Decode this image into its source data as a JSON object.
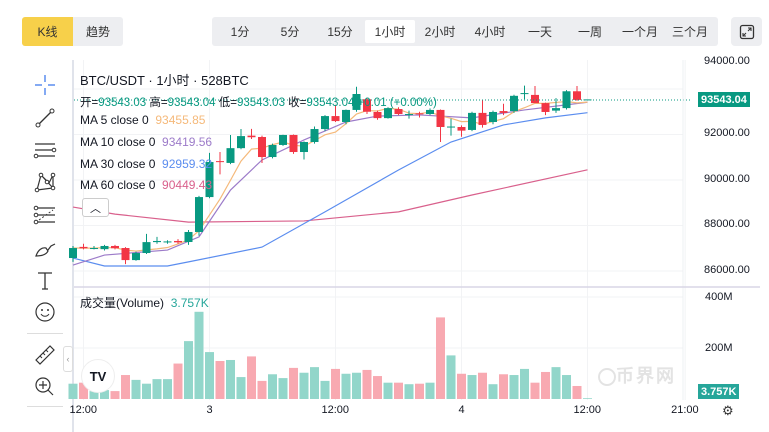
{
  "toolbar": {
    "chart_types": [
      {
        "label": "K线",
        "active": true
      },
      {
        "label": "趋势",
        "active": false
      }
    ],
    "intervals": [
      "1分",
      "5分",
      "15分",
      "1小时",
      "2小时",
      "4小时",
      "一天",
      "一周",
      "一个月",
      "三个月"
    ],
    "selected_interval": "1小时",
    "fullscreen_icon": "expand-icon"
  },
  "drawing_tools": [
    "crosshair-icon",
    "trend-line-icon",
    "horizontal-lines-icon",
    "pattern-icon",
    "fib-icon",
    "brush-icon",
    "text-icon",
    "emoji-icon",
    "ruler-icon",
    "zoom-in-icon"
  ],
  "legend": {
    "title": "BTC/USDT · 1小时 · 528BTC",
    "open_label": "开=",
    "open": "93543.03",
    "high_label": "高=",
    "high": "93543.04",
    "low_label": "低=",
    "low": "93543.03",
    "close_label": "收=",
    "close": "93543.04",
    "change": "+0.01 (+0.00%)",
    "ma": [
      {
        "label": "MA 5 close 0",
        "value": "93455.85",
        "color": "#F5B97A"
      },
      {
        "label": "MA 10 close 0",
        "value": "93419.56",
        "color": "#9C7BC9"
      },
      {
        "label": "MA 30 close 0",
        "value": "92959.32",
        "color": "#5B8DEF"
      },
      {
        "label": "MA 60 close 0",
        "value": "90449.43",
        "color": "#D9608C"
      }
    ],
    "volume_label": "成交量(Volume)",
    "volume_value": "3.757K"
  },
  "colors": {
    "up": "#089981",
    "down": "#F23645",
    "vol_up": "#92D6CA",
    "vol_down": "#F8A9B1",
    "accent": "#F7D04A"
  },
  "chart_data": {
    "type": "candlestick",
    "price_ticks": [
      "94000.00",
      "92000.00",
      "90000.00",
      "88000.00",
      "86000.00"
    ],
    "price_tick_values": [
      94000,
      92000,
      90000,
      88000,
      86000
    ],
    "ylim": [
      85600,
      94400
    ],
    "volume_ticks": [
      "400M",
      "200M"
    ],
    "volume_tick_values": [
      400,
      200
    ],
    "last_price_tag": "93543.04",
    "volume_tag": "3.757K",
    "x_ticks": [
      {
        "label": "12:00",
        "index": 1
      },
      {
        "label": "3",
        "index": 13
      },
      {
        "label": "12:00",
        "index": 25
      },
      {
        "label": "4",
        "index": 37
      },
      {
        "label": "12:00",
        "index": 49
      },
      {
        "label": "21:00",
        "index": 58.3
      }
    ],
    "ohlc": [
      [
        86570,
        87100,
        86400,
        87010
      ],
      [
        87060,
        87200,
        86950,
        87000
      ],
      [
        87000,
        87100,
        86950,
        87010
      ],
      [
        86960,
        87150,
        86900,
        87100
      ],
      [
        87100,
        87150,
        86950,
        87000
      ],
      [
        87010,
        87050,
        86300,
        86480
      ],
      [
        86480,
        86850,
        86450,
        86790
      ],
      [
        86790,
        87630,
        86750,
        87270
      ],
      [
        87270,
        87500,
        87200,
        87320
      ],
      [
        87280,
        87350,
        87200,
        87300
      ],
      [
        87320,
        87400,
        87200,
        87260
      ],
      [
        87275,
        87800,
        87150,
        87715
      ],
      [
        87715,
        89300,
        87550,
        89250
      ],
      [
        89250,
        91190,
        89200,
        90790
      ],
      [
        90830,
        91230,
        90250,
        90790
      ],
      [
        90750,
        91980,
        90700,
        91400
      ],
      [
        91400,
        92240,
        91350,
        91930
      ],
      [
        91950,
        92250,
        91800,
        91880
      ],
      [
        91890,
        91950,
        90750,
        91010
      ],
      [
        91010,
        91600,
        90950,
        91540
      ],
      [
        91540,
        91990,
        91500,
        91980
      ],
      [
        91980,
        92000,
        91150,
        91230
      ],
      [
        91230,
        91700,
        90900,
        91670
      ],
      [
        91670,
        92350,
        91600,
        92240
      ],
      [
        92240,
        92850,
        92150,
        92810
      ],
      [
        92810,
        93300,
        92550,
        92590
      ],
      [
        92550,
        93100,
        92450,
        93080
      ],
      [
        93080,
        94100,
        93000,
        93780
      ],
      [
        93550,
        93600,
        92900,
        93000
      ],
      [
        92990,
        93050,
        92650,
        92720
      ],
      [
        92720,
        93200,
        92700,
        93160
      ],
      [
        93120,
        93200,
        92850,
        92900
      ],
      [
        92880,
        93050,
        92700,
        92900
      ],
      [
        92930,
        93000,
        92750,
        92900
      ],
      [
        92900,
        93150,
        92850,
        93080
      ],
      [
        93080,
        93100,
        91670,
        92330
      ],
      [
        92330,
        92700,
        91950,
        92350
      ],
      [
        92330,
        92400,
        91900,
        92170
      ],
      [
        92200,
        93000,
        92150,
        92950
      ],
      [
        92950,
        93520,
        92300,
        92420
      ],
      [
        92550,
        93050,
        92450,
        92990
      ],
      [
        93030,
        93350,
        92850,
        92950
      ],
      [
        93030,
        93750,
        92950,
        93700
      ],
      [
        93780,
        94150,
        93550,
        93820
      ],
      [
        93740,
        94130,
        93450,
        93380
      ],
      [
        93380,
        93400,
        92850,
        92990
      ],
      [
        93050,
        93600,
        92950,
        93160
      ],
      [
        93160,
        93950,
        93100,
        93900
      ],
      [
        93900,
        94130,
        93480,
        93520
      ],
      [
        93543.03,
        93543.04,
        93543.03,
        93543.04
      ]
    ],
    "volume_millions": [
      60,
      64,
      31,
      35,
      31,
      94,
      75,
      60,
      78,
      78,
      139,
      227,
      342,
      184,
      149,
      153,
      86,
      167,
      71,
      97,
      82,
      122,
      103,
      125,
      71,
      118,
      99,
      103,
      114,
      90,
      64,
      64,
      58,
      60,
      64,
      320,
      171,
      99,
      94,
      103,
      58,
      97,
      94,
      118,
      64,
      106,
      125,
      94,
      51,
      3
    ],
    "ma30_points": [
      [
        0,
        86570
      ],
      [
        3,
        86220
      ],
      [
        9,
        86220
      ],
      [
        11,
        86400
      ],
      [
        18,
        87050
      ],
      [
        24,
        88600
      ],
      [
        31,
        90440
      ],
      [
        36,
        91670
      ],
      [
        41,
        92420
      ],
      [
        45,
        92730
      ],
      [
        49,
        92959
      ]
    ],
    "ma60_points": [
      [
        0,
        88810
      ],
      [
        4,
        88500
      ],
      [
        11,
        88150
      ],
      [
        22,
        88200
      ],
      [
        31,
        88600
      ],
      [
        38,
        89340
      ],
      [
        49,
        90449
      ]
    ],
    "ma10_points": [
      [
        0,
        86260
      ],
      [
        3,
        86700
      ],
      [
        9,
        86920
      ],
      [
        12,
        87500
      ],
      [
        15,
        89560
      ],
      [
        18,
        90880
      ],
      [
        22,
        91760
      ],
      [
        26,
        92550
      ],
      [
        29,
        92810
      ],
      [
        33,
        92860
      ],
      [
        38,
        92730
      ],
      [
        43,
        93080
      ],
      [
        49,
        93419
      ]
    ]
  },
  "watermark": "币界网"
}
